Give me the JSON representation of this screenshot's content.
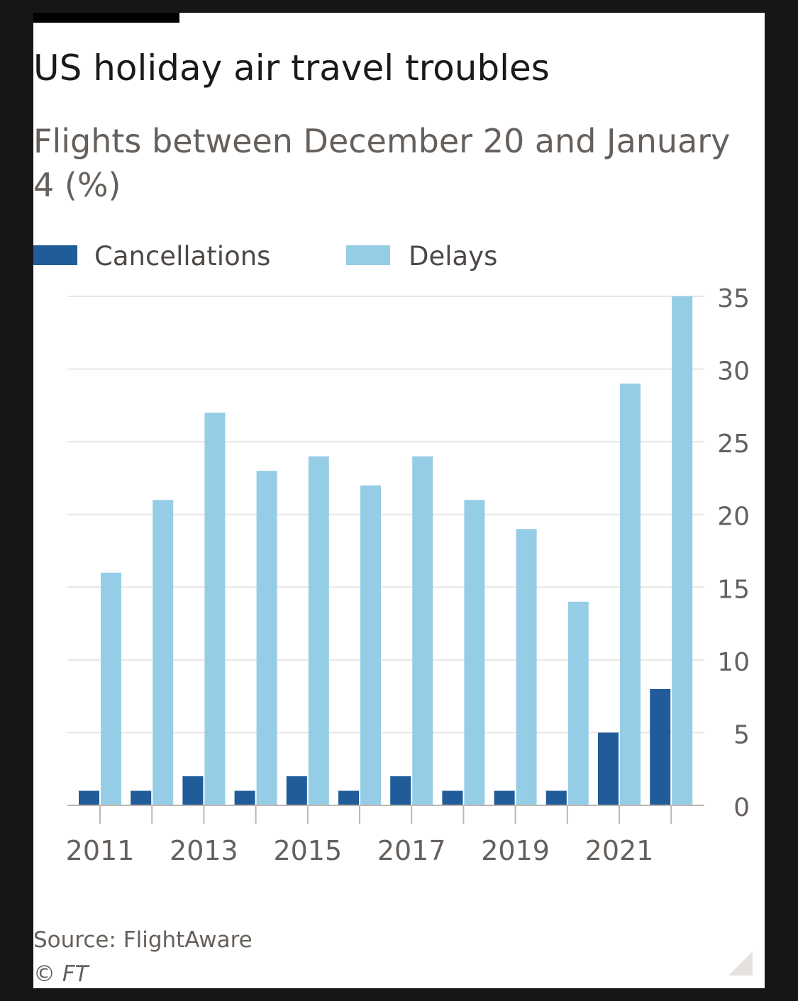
{
  "chart_data": {
    "type": "bar",
    "title": "US holiday air travel troubles",
    "subtitle": "Flights between December 20 and January 4 (%)",
    "x": [
      2011,
      2012,
      2013,
      2014,
      2015,
      2016,
      2017,
      2018,
      2019,
      2020,
      2021,
      2022
    ],
    "x_tick_labels": [
      "2011",
      "2013",
      "2015",
      "2017",
      "2019",
      "2021"
    ],
    "series": [
      {
        "name": "Cancellations",
        "color": "#1f5c99",
        "values": [
          1,
          1,
          2,
          1,
          2,
          1,
          2,
          1,
          1,
          1,
          5,
          8
        ]
      },
      {
        "name": "Delays",
        "color": "#96cde6",
        "values": [
          16,
          21,
          27,
          23,
          24,
          22,
          24,
          21,
          19,
          14,
          29,
          35
        ]
      }
    ],
    "y_ticks": [
      0,
      5,
      10,
      15,
      20,
      25,
      30,
      35
    ],
    "ylim": [
      0,
      35
    ],
    "y_axis_side": "right",
    "grid": true,
    "legend_position": "top-left"
  },
  "footer": {
    "source": "Source: FlightAware",
    "copyright": "© FT"
  },
  "colors": {
    "gridline": "#e9e6e2",
    "baseline": "#bdb7b1",
    "tick_text": "#66605c"
  }
}
